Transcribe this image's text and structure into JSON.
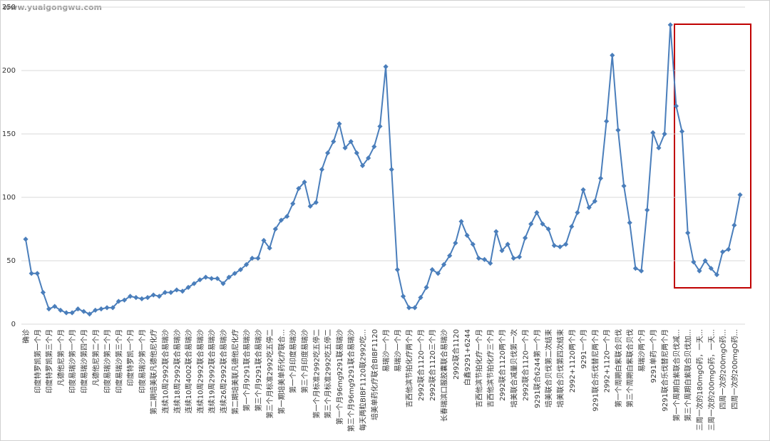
{
  "watermark": "www.yuaigongwu.com",
  "chart_data": {
    "type": "line",
    "categories": [
      "确诊",
      null,
      "印度特罗凯第一个月",
      null,
      "印度特罗凯第三个月",
      null,
      "凡德他尼第一个月",
      null,
      "印度易瑞沙第一个月",
      null,
      "印度易瑞沙第四个月",
      null,
      "凡德他尼第二个月",
      null,
      "印度易瑞沙第二个月",
      null,
      "印度易瑞沙第三个月",
      null,
      "印度特罗凯一个月",
      null,
      "印度易瑞沙第一个月",
      null,
      "第二期培美联凡德他尼化疗",
      null,
      "连续10周2992联合易瑞沙",
      null,
      "连续18周2992联合易瑞沙",
      null,
      "连续10周4002联合易瑞沙",
      null,
      "连续10周2992联合易瑞沙",
      null,
      "连续19周2992联合易瑞沙",
      null,
      "连续26周2992联合易瑞沙",
      null,
      "第二期培美联凡德他尼化疗",
      null,
      "第一个月9291联合易瑞沙",
      null,
      "第三个月9291联合易瑞沙",
      null,
      "第三个月标准2992吃五停二",
      null,
      "第一期培美单药化疗联合...",
      null,
      "第一个月印度易瑞沙",
      null,
      "第三个月印度易瑞沙",
      null,
      "第一个月标准2992吃五停二",
      null,
      "第三个月标准2992吃五停二",
      null,
      "第一个月96mg9291联易瑞沙",
      null,
      "第三个月96mg9291联合易瑞沙",
      null,
      "每天两粒BIBF1120联2992吃...",
      null,
      "培美单药化疗联合BIBF1120",
      null,
      "易瑞沙一个月",
      null,
      "易瑞沙一个月",
      null,
      "吉西他滨节拍化疗两个月",
      null,
      "2992联合1120一个月",
      null,
      "2992联合1120三个月",
      null,
      "长春瑞滨口服胶囊联合易瑞沙",
      null,
      "2992联合1120",
      null,
      "白鑫9291+6244",
      null,
      "吉西他滨节拍化疗一个月",
      null,
      "吉西他滨节拍化疗三个月",
      null,
      "2992联合1120两个月",
      null,
      "培美联合减量贝伐第一次",
      null,
      "2992联合1120一个月",
      null,
      "9291联合6244第一个月",
      null,
      "培美联合贝伐第二次结束",
      null,
      "培美联合贝伐第四次结束",
      null,
      "2992+1120两个月",
      null,
      "9291一个月",
      null,
      "9291联合乐伐替尼两个月",
      null,
      "2992+1120一个月",
      null,
      "第一个周期白紫联合贝伐",
      null,
      "第三个周期白紫联合贝伐",
      null,
      "易瑞沙两个月",
      null,
      "9291单药一个月",
      null,
      "9291联合乐伐替尼两个月",
      null,
      "第一个周期白紫联合贝伐减...",
      null,
      "第三个周期白紫联合贝伐加...",
      null,
      "三周一次的180mgO药，一天...",
      null,
      "三周一次的200mgO药，一天...",
      null,
      "四周一次的200mgO药...",
      null,
      "四周一次的200mgO药...",
      null
    ],
    "values": [
      67,
      40,
      40,
      25,
      12,
      14,
      11,
      9,
      9,
      12,
      10,
      8,
      11,
      12,
      13,
      13,
      18,
      19,
      22,
      21,
      20,
      21,
      23,
      22,
      25,
      25,
      27,
      26,
      29,
      32,
      35,
      37,
      36,
      36,
      32,
      37,
      40,
      43,
      47,
      52,
      52,
      66,
      60,
      75,
      82,
      85,
      95,
      107,
      112,
      93,
      96,
      122,
      135,
      144,
      158,
      139,
      144,
      135,
      125,
      131,
      140,
      156,
      203,
      122,
      43,
      22,
      13,
      13,
      21,
      29,
      43,
      40,
      47,
      54,
      64,
      81,
      70,
      63,
      52,
      51,
      48,
      73,
      58,
      63,
      52,
      53,
      68,
      79,
      88,
      79,
      75,
      62,
      61,
      63,
      77,
      88,
      106,
      92,
      97,
      115,
      160,
      212,
      153,
      109,
      80,
      44,
      42,
      90,
      151,
      139,
      150,
      236,
      172,
      152,
      72,
      49,
      42,
      50,
      44,
      39,
      57,
      59,
      78,
      102
    ],
    "color": "#4a7ebb",
    "ylim": [
      0,
      250
    ],
    "yticks": [
      0,
      50,
      100,
      150,
      200,
      250
    ],
    "grid": true
  }
}
